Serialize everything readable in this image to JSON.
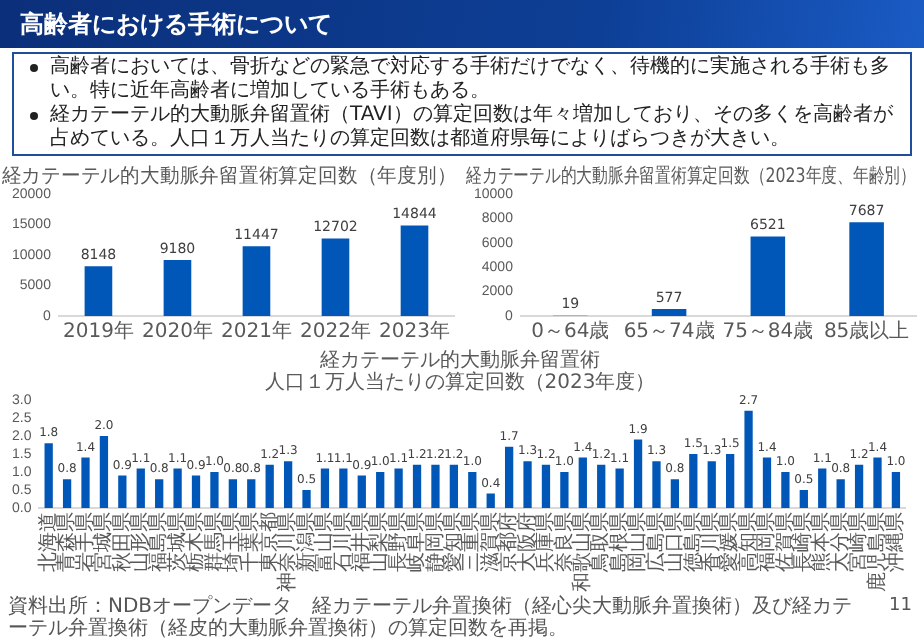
{
  "chart_data": [
    {
      "type": "bar",
      "title": "経カテーテル的大動脈弁留置術算定回数（年度別）",
      "categories": [
        "2019年",
        "2020年",
        "2021年",
        "2022年",
        "2023年"
      ],
      "values": [
        8148,
        9180,
        11447,
        12702,
        14844
      ],
      "color": "#0057b7",
      "ylim": [
        0,
        20000
      ],
      "yticks": [
        0,
        5000,
        10000,
        15000,
        20000
      ],
      "data_labels": true,
      "annotations": [
        "高齢者における手術について",
        "高齢者においては、骨折などの緊急で対応する手術だけでなく、待機的に実施される手術も多い。特に近年高齢者に増加している手術もある。",
        "経カテーテル的大動脈弁留置術（TAVI）の算定回数は年々増加しており、その多くを高齢者が占めている。人口１万人当たりの算定回数は都道府県毎によりばらつきが大きい。"
      ]
    },
    {
      "type": "bar",
      "title": "経カテーテル的大動脈弁留置術算定回数（2023年度、年齢別）",
      "categories": [
        "0～64歳",
        "65～74歳",
        "75～84歳",
        "85歳以上"
      ],
      "values": [
        19,
        577,
        6521,
        7687
      ],
      "color": "#0057b7",
      "ylim": [
        0,
        10000
      ],
      "yticks": [
        0,
        2000,
        4000,
        6000,
        8000,
        10000
      ],
      "data_labels": true
    },
    {
      "type": "bar",
      "title": "経カテーテル的大動脈弁留置術",
      "subtitle": "人口１万人当たりの算定回数（2023年度）",
      "categories": [
        "北海道",
        "青森県",
        "岩手県",
        "宮城県",
        "秋田県",
        "山形県",
        "福島県",
        "茨城県",
        "栃木県",
        "群馬県",
        "埼玉県",
        "千葉県",
        "東京都",
        "神奈川県",
        "新潟県",
        "富山県",
        "石川県",
        "福井県",
        "山梨県",
        "長野県",
        "岐阜県",
        "静岡県",
        "愛知県",
        "三重県",
        "滋賀県",
        "京都府",
        "大阪府",
        "兵庫県",
        "奈良県",
        "和歌山県",
        "鳥取県",
        "島根県",
        "岡山県",
        "広島県",
        "山口県",
        "徳島県",
        "香川県",
        "愛媛県",
        "高知県",
        "福岡県",
        "佐賀県",
        "長崎県",
        "熊本県",
        "大分県",
        "宮崎県",
        "鹿児島県",
        "沖縄県"
      ],
      "values": [
        1.8,
        0.8,
        1.4,
        2.0,
        0.9,
        1.1,
        0.8,
        1.1,
        0.9,
        1.0,
        0.8,
        0.8,
        1.2,
        1.3,
        0.5,
        1.1,
        1.1,
        0.9,
        1.0,
        1.1,
        1.2,
        1.2,
        1.2,
        1.0,
        0.4,
        1.7,
        1.3,
        1.2,
        1.0,
        1.4,
        1.2,
        1.1,
        1.9,
        1.3,
        0.8,
        1.5,
        1.3,
        1.5,
        2.7,
        1.4,
        1.0,
        0.5,
        1.1,
        0.8,
        1.2,
        1.4,
        1.0
      ],
      "value_labels": [
        "1.8",
        "0.8",
        "1.4",
        "2.0",
        "0.9",
        "1.1",
        "0.8",
        "1.1",
        "0.9",
        "1.0",
        "0.8",
        "0.8",
        "1.2",
        "1.3",
        "0.5",
        "1.1",
        "1.1",
        "0.9",
        "1.0",
        "1.1",
        "1.2",
        "1.2",
        "1.2",
        "1.0",
        "0.4",
        "1.7",
        "1.3",
        "1.2",
        "1.0",
        "1.4",
        "1.2",
        "1.1",
        "1.9",
        "1.3",
        "0.8",
        "1.5",
        "1.3",
        "1.5",
        "2.7",
        "1.4",
        "1.0",
        "0.5",
        "1.1",
        "0.8",
        "1.2",
        "1.4",
        "1.0"
      ],
      "color": "#0057b7",
      "ylim": [
        0,
        3
      ],
      "yticks": [
        {
          "value": 0,
          "label": "0.0"
        },
        0.5,
        {
          "value": 1,
          "label": "1.0"
        },
        1.5,
        {
          "value": 2,
          "label": "2.0"
        },
        2.5,
        {
          "value": 3,
          "label": "3.0"
        }
      ],
      "annotations": [
        "資料出所：NDBオープンデータ　経カテーテル弁置換術（経心尖大動脈弁置換術）及び経カテーテル弁置換術（経皮的大動脈弁置換術）の算定回数を再掲。",
        "11"
      ]
    }
  ]
}
